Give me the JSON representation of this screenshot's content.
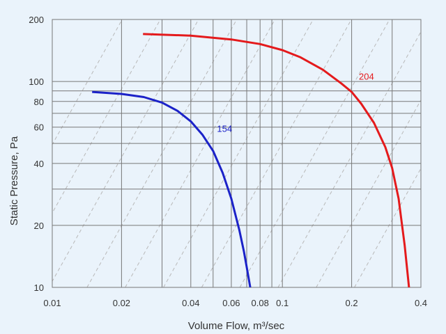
{
  "chart_data": {
    "type": "line",
    "title": "",
    "xlabel": "Volume Flow, m³/sec",
    "ylabel": "Static Pressure, Pa",
    "x_scale": "log",
    "y_scale": "log",
    "xlim": [
      0.01,
      0.4
    ],
    "ylim": [
      10,
      200
    ],
    "x_ticks": [
      {
        "value": 0.01,
        "label": "0.01"
      },
      {
        "value": 0.02,
        "label": "0.02"
      },
      {
        "value": 0.04,
        "label": "0.04"
      },
      {
        "value": 0.06,
        "label": "0.06"
      },
      {
        "value": 0.08,
        "label": "0.08"
      },
      {
        "value": 0.1,
        "label": "0.1"
      },
      {
        "value": 0.2,
        "label": "0.2"
      },
      {
        "value": 0.4,
        "label": "0.4"
      }
    ],
    "y_ticks": [
      {
        "value": 10,
        "label": "10"
      },
      {
        "value": 20,
        "label": "20"
      },
      {
        "value": 40,
        "label": "40"
      },
      {
        "value": 60,
        "label": "60"
      },
      {
        "value": 80,
        "label": "80"
      },
      {
        "value": 100,
        "label": "100"
      },
      {
        "value": 200,
        "label": "200"
      }
    ],
    "x_gridlines": [
      0.02,
      0.03,
      0.04,
      0.05,
      0.06,
      0.07,
      0.08,
      0.09,
      0.1,
      0.2,
      0.3
    ],
    "y_gridlines": [
      20,
      30,
      40,
      50,
      60,
      70,
      80,
      90,
      100
    ],
    "grid": true,
    "system_curves": true,
    "series": [
      {
        "name": "154",
        "color": "#1b22c8",
        "x": [
          0.0149,
          0.02,
          0.025,
          0.03,
          0.035,
          0.04,
          0.045,
          0.05,
          0.055,
          0.06,
          0.065,
          0.068,
          0.07,
          0.0725
        ],
        "y": [
          89,
          87,
          84,
          79,
          72,
          64,
          55,
          46,
          36,
          27,
          19,
          15,
          12.5,
          10
        ]
      },
      {
        "name": "204",
        "color": "#e41a1c",
        "x": [
          0.0248,
          0.04,
          0.06,
          0.08,
          0.1,
          0.12,
          0.15,
          0.18,
          0.2,
          0.22,
          0.25,
          0.28,
          0.3,
          0.32,
          0.34,
          0.355
        ],
        "y": [
          170,
          167,
          160,
          152,
          142,
          131,
          114,
          98,
          89,
          78,
          63,
          48,
          38,
          27,
          16,
          10
        ]
      }
    ],
    "colors": {
      "background": "#eaf3fb",
      "grid": "#777777",
      "system_curve": "#b8b8b8"
    }
  }
}
